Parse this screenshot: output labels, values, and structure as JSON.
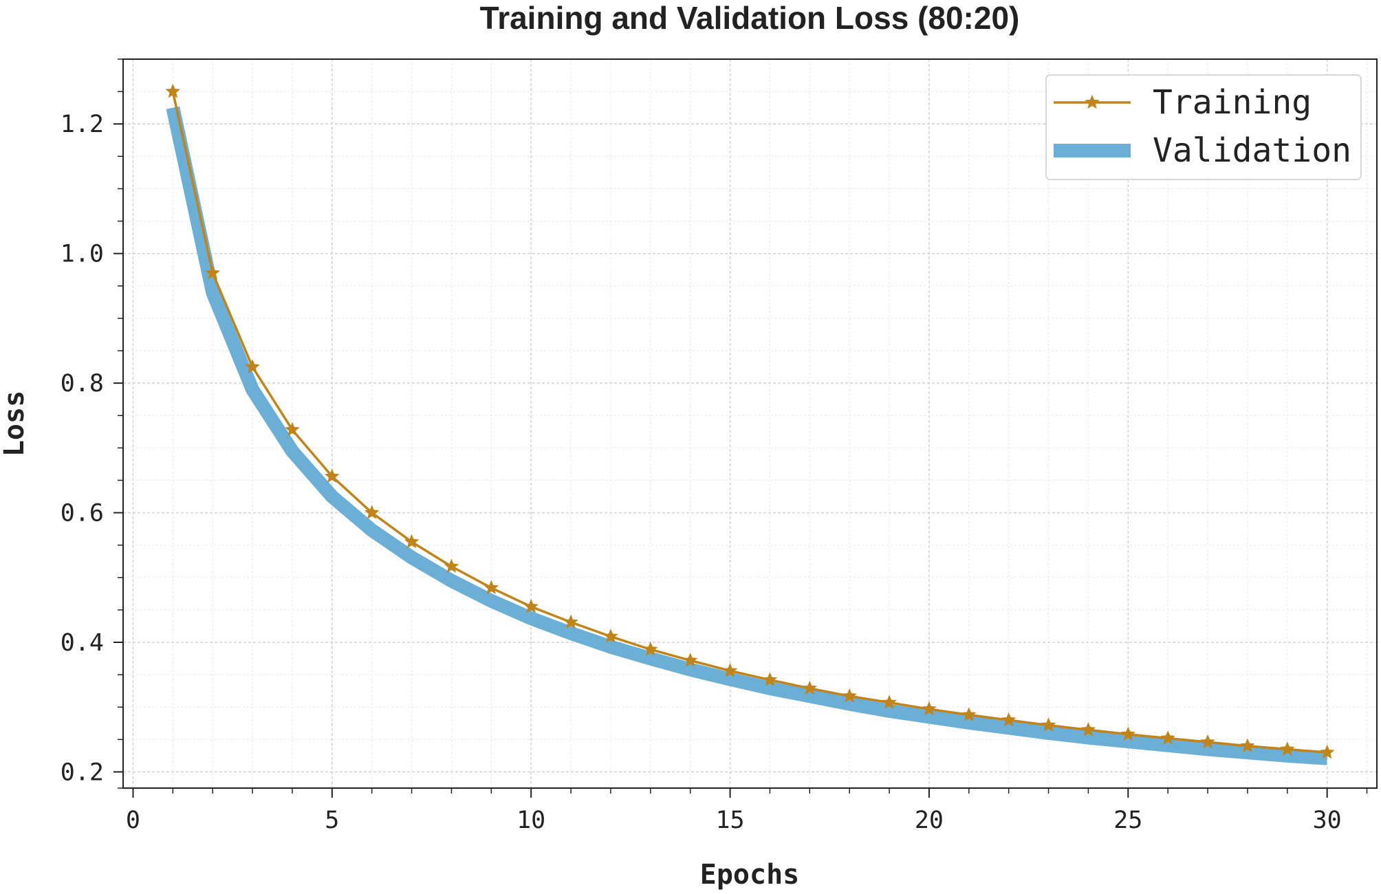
{
  "chart_data": {
    "type": "line",
    "title": "Training and Validation Loss (80:20)",
    "xlabel": "Epochs",
    "ylabel": "Loss",
    "xlim": [
      -0.25,
      31.25
    ],
    "ylim": [
      0.175,
      1.3
    ],
    "xticks": [
      0,
      5,
      10,
      15,
      20,
      25,
      30
    ],
    "xtick_labels": [
      "0",
      "5",
      "10",
      "15",
      "20",
      "25",
      "30"
    ],
    "yticks": [
      0.2,
      0.4,
      0.6,
      0.8,
      1.0,
      1.2
    ],
    "ytick_labels": [
      "0.2",
      "0.4",
      "0.6",
      "0.8",
      "1.0",
      "1.2"
    ],
    "grid": true,
    "legend_position": "top-right",
    "x": [
      1,
      2,
      3,
      4,
      5,
      6,
      7,
      8,
      9,
      10,
      11,
      12,
      13,
      14,
      15,
      16,
      17,
      18,
      19,
      20,
      21,
      22,
      23,
      24,
      25,
      26,
      27,
      28,
      29,
      30
    ],
    "series": [
      {
        "name": "Training",
        "color": "#c0841a",
        "marker": "star",
        "values": [
          1.25,
          0.97,
          0.825,
          0.728,
          0.656,
          0.6,
          0.555,
          0.517,
          0.484,
          0.455,
          0.431,
          0.409,
          0.389,
          0.372,
          0.356,
          0.342,
          0.329,
          0.317,
          0.307,
          0.297,
          0.288,
          0.28,
          0.272,
          0.265,
          0.258,
          0.252,
          0.246,
          0.24,
          0.235,
          0.23
        ]
      },
      {
        "name": "Validation",
        "color": "#6baed6",
        "marker": "none",
        "values": [
          1.225,
          0.94,
          0.79,
          0.695,
          0.625,
          0.573,
          0.531,
          0.495,
          0.464,
          0.437,
          0.414,
          0.393,
          0.375,
          0.358,
          0.343,
          0.329,
          0.317,
          0.305,
          0.294,
          0.285,
          0.276,
          0.268,
          0.26,
          0.253,
          0.247,
          0.241,
          0.235,
          0.23,
          0.225,
          0.221
        ]
      }
    ]
  }
}
